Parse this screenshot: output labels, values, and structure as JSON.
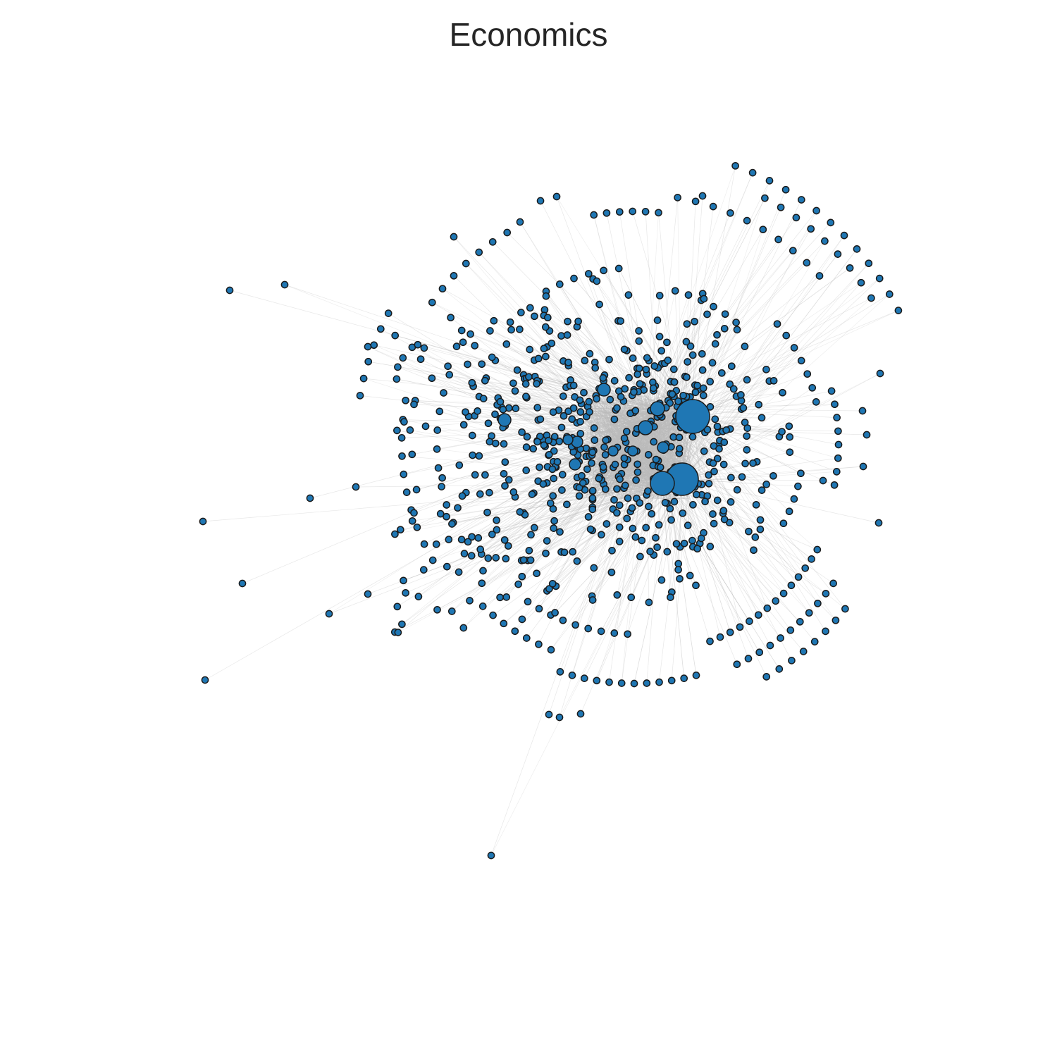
{
  "title": "Economics",
  "colors": {
    "node_fill": "#1f77b4",
    "node_stroke": "#1a1a1a",
    "edge": "#bbbbbb",
    "background": "#ffffff"
  }
}
